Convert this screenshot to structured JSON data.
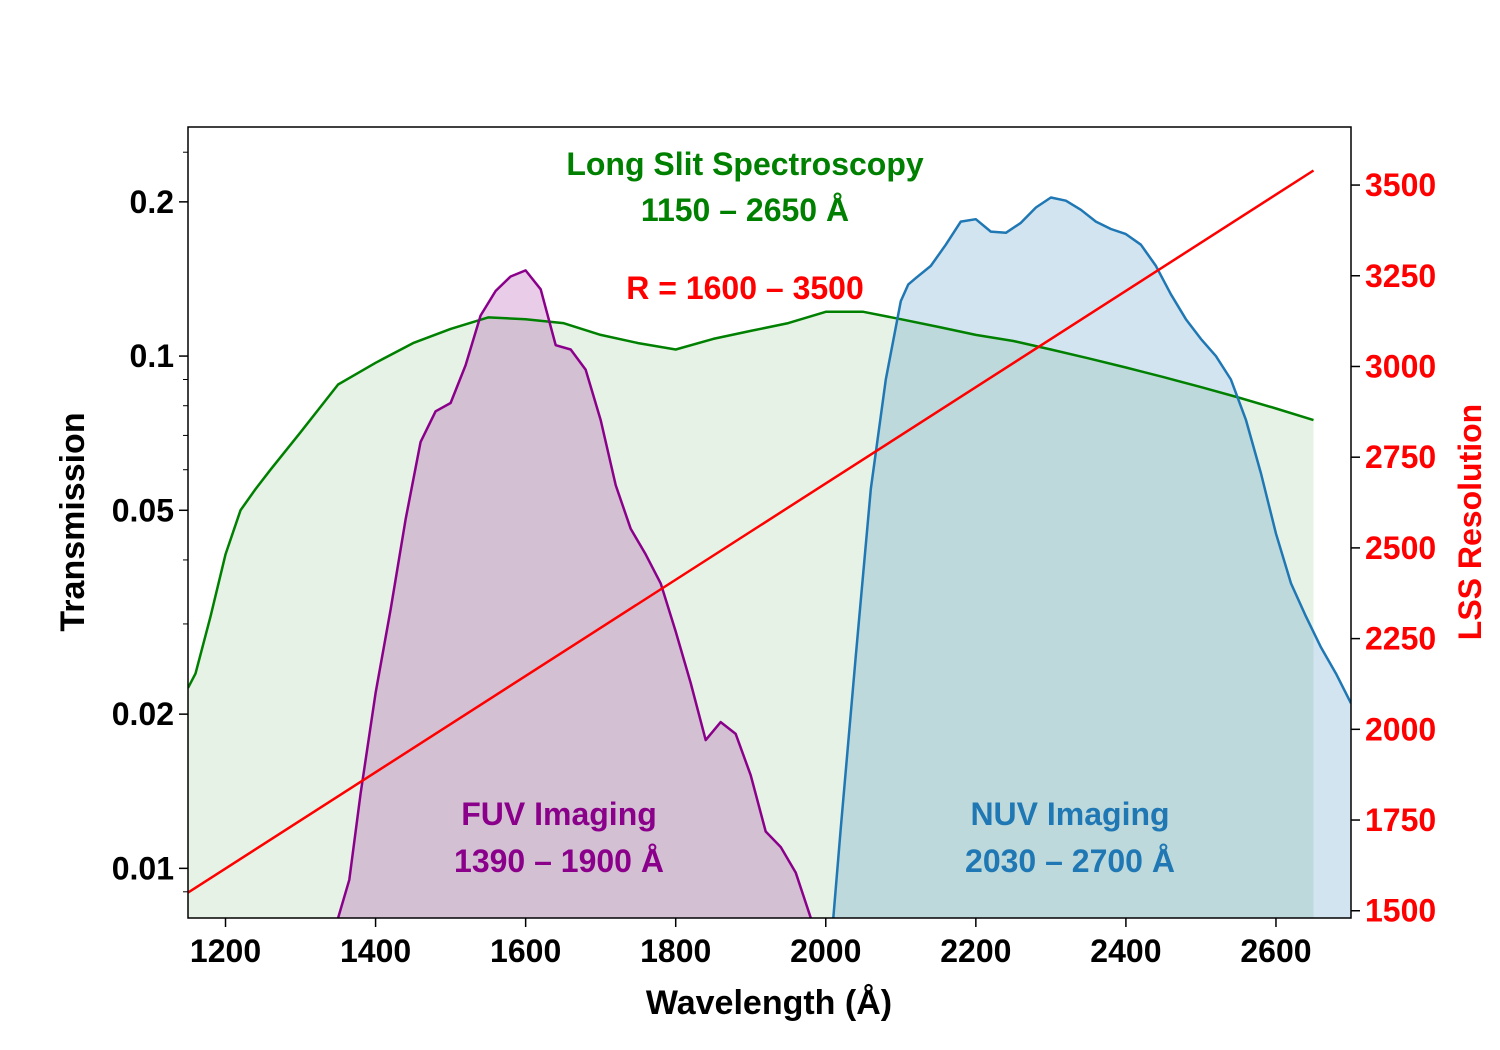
{
  "chart_data": {
    "type": "area",
    "xlabel": "Wavelength (Å)",
    "ylabel": "Transmission",
    "y2label": "LSS Resolution",
    "xlim": [
      1150,
      2700
    ],
    "ylim": [
      0.008,
      0.28
    ],
    "yscale": "log",
    "y2lim": [
      1480,
      3660
    ],
    "x_ticks": [
      "1200",
      "1400",
      "1600",
      "1800",
      "2000",
      "2200",
      "2400",
      "2600"
    ],
    "y_ticks": [
      "0.01",
      "0.02",
      "0.05",
      "0.1",
      "0.2"
    ],
    "y2_ticks": [
      "1500",
      "1750",
      "2000",
      "2250",
      "2500",
      "2750",
      "3000",
      "3250",
      "3500"
    ],
    "grid": false,
    "annotations": {
      "lss_line1": "Long Slit Spectroscopy",
      "lss_line2": "1150 – 2650 Å",
      "resolution": "R = 1600 – 3500",
      "fuv_line1": "FUV Imaging",
      "fuv_line2": "1390 – 1900 Å",
      "nuv_line1": "NUV Imaging",
      "nuv_line2": "2030 – 2700 Å"
    },
    "colors": {
      "lss": "#008000",
      "fuv": "#8b008b",
      "nuv": "#1f77b4",
      "resolution": "#ff0000",
      "axis": "#000000"
    },
    "series": [
      {
        "key": "lss",
        "axis": "left",
        "x": [
          1150,
          1160,
          1180,
          1200,
          1220,
          1240,
          1260,
          1300,
          1350,
          1400,
          1450,
          1500,
          1550,
          1600,
          1650,
          1700,
          1750,
          1800,
          1850,
          1900,
          1950,
          2000,
          2050,
          2100,
          2150,
          2200,
          2250,
          2300,
          2350,
          2400,
          2450,
          2500,
          2550,
          2600,
          2650
        ],
        "y": [
          0.0225,
          0.024,
          0.031,
          0.041,
          0.05,
          0.055,
          0.06,
          0.071,
          0.088,
          0.097,
          0.106,
          0.113,
          0.119,
          0.118,
          0.116,
          0.11,
          0.106,
          0.103,
          0.108,
          0.112,
          0.116,
          0.122,
          0.122,
          0.118,
          0.114,
          0.11,
          0.107,
          0.103,
          0.099,
          0.095,
          0.091,
          0.087,
          0.083,
          0.079,
          0.075
        ]
      },
      {
        "key": "fuv",
        "axis": "left",
        "x": [
          1350,
          1365,
          1380,
          1400,
          1420,
          1440,
          1460,
          1480,
          1500,
          1520,
          1540,
          1560,
          1580,
          1600,
          1620,
          1640,
          1660,
          1680,
          1700,
          1720,
          1740,
          1760,
          1780,
          1800,
          1820,
          1840,
          1860,
          1880,
          1900,
          1920,
          1940,
          1960,
          1980
        ],
        "y": [
          0.008,
          0.0095,
          0.014,
          0.022,
          0.032,
          0.048,
          0.068,
          0.078,
          0.081,
          0.096,
          0.12,
          0.134,
          0.143,
          0.147,
          0.135,
          0.105,
          0.103,
          0.094,
          0.075,
          0.056,
          0.046,
          0.041,
          0.036,
          0.029,
          0.023,
          0.0178,
          0.0193,
          0.0183,
          0.0152,
          0.0118,
          0.011,
          0.0098,
          0.008
        ]
      },
      {
        "key": "nuv",
        "axis": "left",
        "x": [
          2010,
          2020,
          2040,
          2060,
          2080,
          2100,
          2110,
          2120,
          2140,
          2160,
          2180,
          2200,
          2220,
          2240,
          2260,
          2280,
          2300,
          2320,
          2340,
          2360,
          2380,
          2400,
          2420,
          2440,
          2460,
          2480,
          2500,
          2520,
          2540,
          2560,
          2580,
          2600,
          2620,
          2640,
          2660,
          2680,
          2700
        ],
        "y": [
          0.008,
          0.012,
          0.026,
          0.055,
          0.09,
          0.128,
          0.138,
          0.142,
          0.15,
          0.165,
          0.183,
          0.185,
          0.175,
          0.174,
          0.182,
          0.195,
          0.204,
          0.201,
          0.193,
          0.183,
          0.177,
          0.173,
          0.165,
          0.15,
          0.132,
          0.118,
          0.108,
          0.1,
          0.09,
          0.075,
          0.059,
          0.045,
          0.036,
          0.031,
          0.027,
          0.024,
          0.021
        ]
      },
      {
        "key": "resolution",
        "axis": "right",
        "x": [
          1150,
          2650
        ],
        "y": [
          1550,
          3540
        ]
      }
    ]
  }
}
